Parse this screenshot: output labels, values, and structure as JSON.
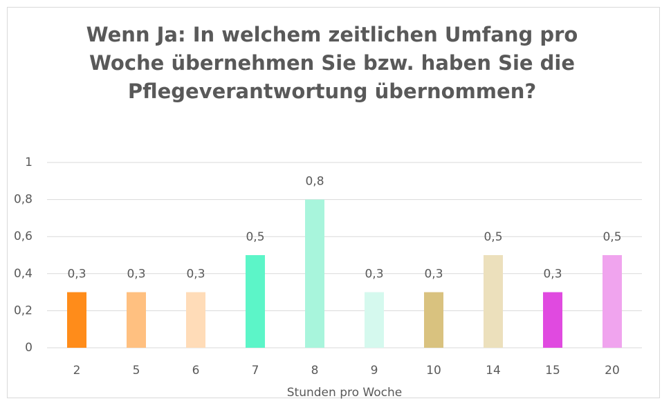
{
  "chart_data": {
    "type": "bar",
    "title": "Wenn Ja: In welchem zeitlichen Umfang pro Woche übernehmen Sie bzw. haben Sie die Pflegeverantwortung übernommen?",
    "x_label": "Stunden pro Woche",
    "categories": [
      "2",
      "5",
      "6",
      "7",
      "8",
      "9",
      "10",
      "14",
      "15",
      "20"
    ],
    "values": [
      0.3,
      0.3,
      0.3,
      0.5,
      0.8,
      0.3,
      0.3,
      0.5,
      0.3,
      0.5
    ],
    "value_labels": [
      "0,3",
      "0,3",
      "0,3",
      "0,5",
      "0,8",
      "0,3",
      "0,3",
      "0,5",
      "0,3",
      "0,5"
    ],
    "colors": [
      "#ff8c1a",
      "#ffc080",
      "#ffdcb8",
      "#5cf5c8",
      "#a8f5dc",
      "#d5f9ee",
      "#d9c27f",
      "#ece0bc",
      "#e04ae0",
      "#f0a4ee"
    ],
    "ylim": [
      0,
      1
    ],
    "yticks": [
      0,
      {
        "value": 0.2,
        "label": "0,2"
      },
      {
        "value": 0.4,
        "label": "0,4"
      },
      {
        "value": 0.6,
        "label": "0,6"
      },
      {
        "value": 0.8,
        "label": "0,8"
      },
      1
    ],
    "grid": true
  }
}
